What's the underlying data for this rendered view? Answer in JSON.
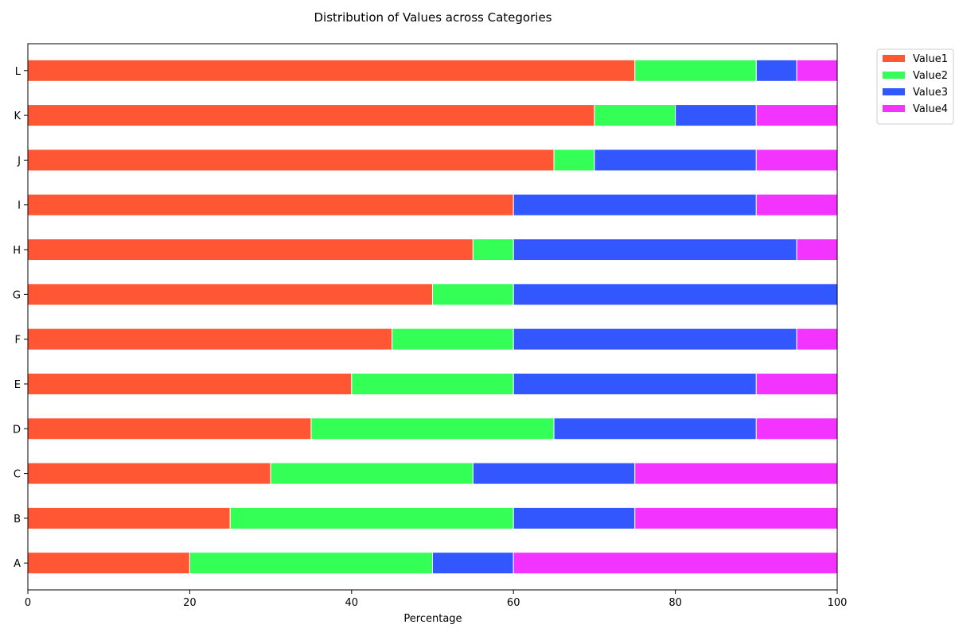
{
  "chart_data": {
    "type": "bar",
    "orientation": "horizontal",
    "stacked": true,
    "title": "Distribution of Values across Categories",
    "xlabel": "Percentage",
    "ylabel": "",
    "xlim": [
      0,
      100
    ],
    "xticks": [
      0,
      20,
      40,
      60,
      80,
      100
    ],
    "grid": false,
    "legend_position": "outside-top-right",
    "categories": [
      "A",
      "B",
      "C",
      "D",
      "E",
      "F",
      "G",
      "H",
      "I",
      "J",
      "K",
      "L"
    ],
    "series": [
      {
        "name": "Value1",
        "color": "#ff5733",
        "values": [
          20,
          25,
          30,
          35,
          40,
          45,
          50,
          55,
          60,
          65,
          70,
          75
        ]
      },
      {
        "name": "Value2",
        "color": "#33ff57",
        "values": [
          30,
          35,
          25,
          30,
          20,
          15,
          10,
          5,
          0,
          5,
          10,
          15
        ]
      },
      {
        "name": "Value3",
        "color": "#3357ff",
        "values": [
          10,
          15,
          20,
          25,
          30,
          35,
          40,
          35,
          30,
          20,
          10,
          5
        ]
      },
      {
        "name": "Value4",
        "color": "#f333ff",
        "values": [
          40,
          25,
          25,
          10,
          10,
          5,
          0,
          5,
          10,
          10,
          10,
          5
        ]
      }
    ]
  }
}
